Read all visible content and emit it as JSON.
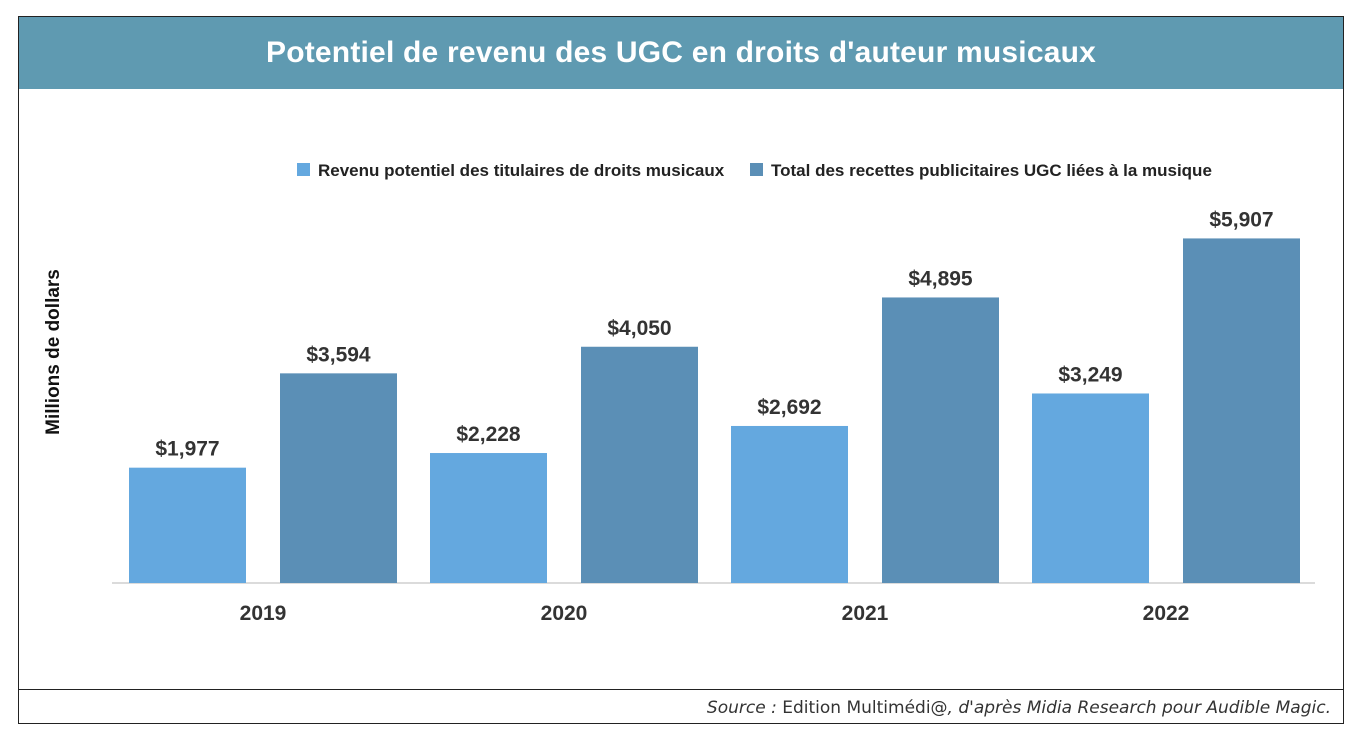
{
  "title": "Potentiel de revenu des UGC en droits d'auteur musicaux",
  "source": {
    "prefix": "Source :",
    "publisher": "Edition Multimédi@",
    "suffix": ", d'après Midia Research pour Audible Magic."
  },
  "colors": {
    "title_bar": "#5f9ab1",
    "series_1": "#64a8df",
    "series_2": "#5b8fb6"
  },
  "chart_data": {
    "type": "bar",
    "categories": [
      "2019",
      "2020",
      "2021",
      "2022"
    ],
    "series": [
      {
        "name": "Revenu potentiel des titulaires de droits musicaux",
        "values": [
          1977,
          2228,
          2692,
          3249
        ],
        "labels": [
          "$1,977",
          "$2,228",
          "$2,692",
          "$3,249"
        ]
      },
      {
        "name": "Total des recettes publicitaires UGC liées à la musique",
        "values": [
          3594,
          4050,
          4895,
          5907
        ],
        "labels": [
          "$3,594",
          "$4,050",
          "$4,895",
          "$5,907"
        ]
      }
    ],
    "ylabel": "Millions de dollars",
    "xlabel": "",
    "ylim": [
      0,
      6000
    ],
    "grid": false,
    "legend_position": "top"
  }
}
